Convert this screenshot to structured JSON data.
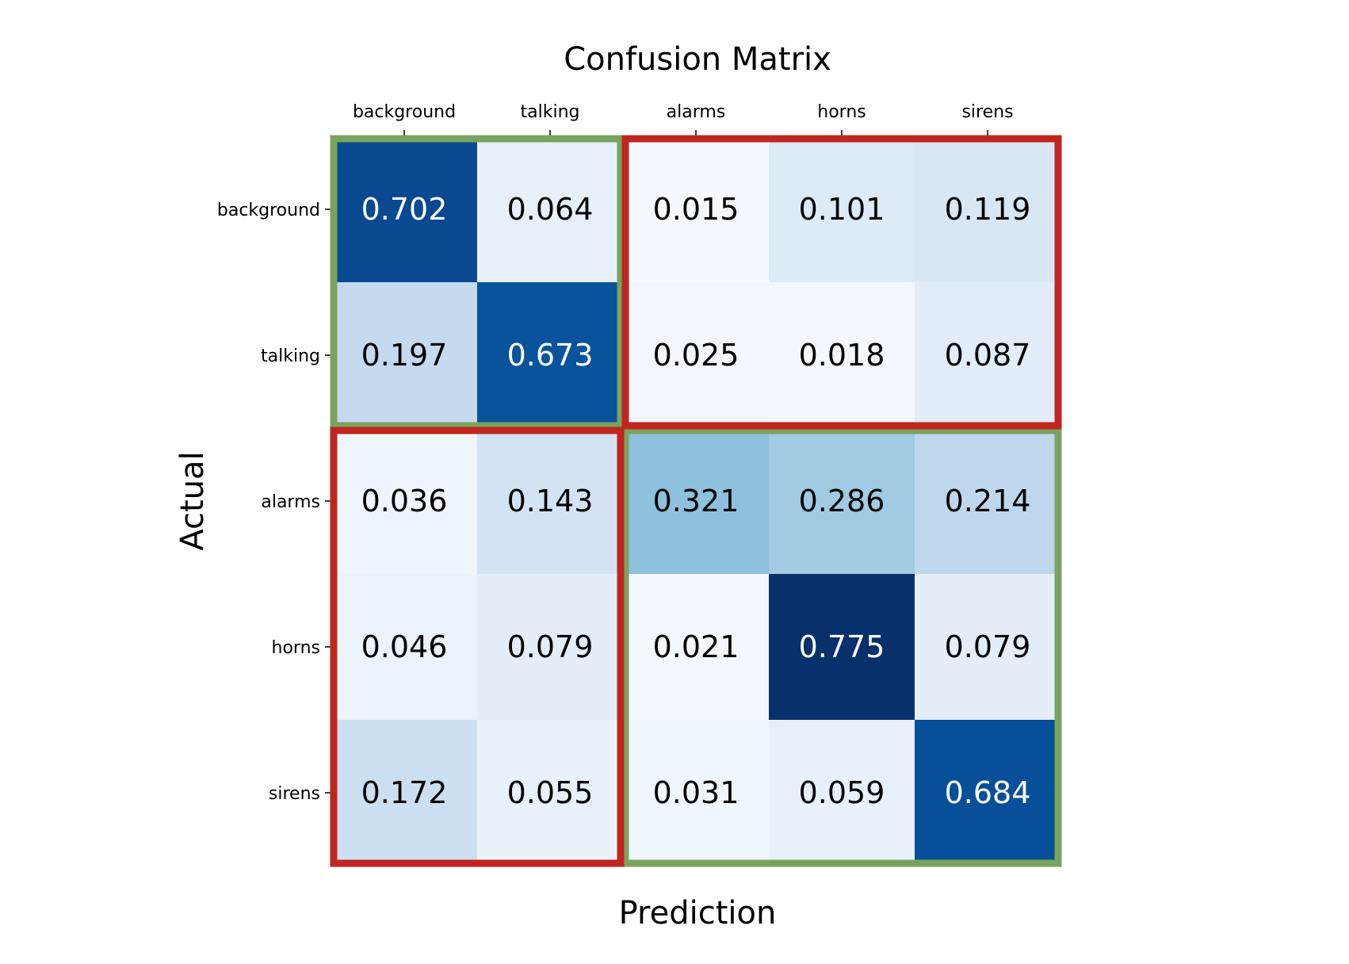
{
  "chart_data": {
    "type": "heatmap",
    "title": "Confusion Matrix",
    "xlabel": "Prediction",
    "ylabel": "Actual",
    "x_categories": [
      "background",
      "talking",
      "alarms",
      "horns",
      "sirens"
    ],
    "y_categories": [
      "background",
      "talking",
      "alarms",
      "horns",
      "sirens"
    ],
    "values": [
      [
        0.702,
        0.064,
        0.015,
        0.101,
        0.119
      ],
      [
        0.197,
        0.673,
        0.025,
        0.018,
        0.087
      ],
      [
        0.036,
        0.143,
        0.321,
        0.286,
        0.214
      ],
      [
        0.046,
        0.079,
        0.021,
        0.775,
        0.079
      ],
      [
        0.172,
        0.055,
        0.031,
        0.059,
        0.684
      ]
    ],
    "colormap": "Blues",
    "value_range": [
      0,
      0.775
    ],
    "x_tick_position": "top",
    "highlight_boxes": [
      {
        "rows": [
          0,
          1
        ],
        "cols": [
          0,
          1
        ],
        "color": "#7aa35e"
      },
      {
        "rows": [
          2,
          4
        ],
        "cols": [
          2,
          4
        ],
        "color": "#7aa35e"
      },
      {
        "rows": [
          0,
          1
        ],
        "cols": [
          2,
          4
        ],
        "color": "#c0261f"
      },
      {
        "rows": [
          2,
          4
        ],
        "cols": [
          0,
          1
        ],
        "color": "#c0261f"
      }
    ]
  }
}
